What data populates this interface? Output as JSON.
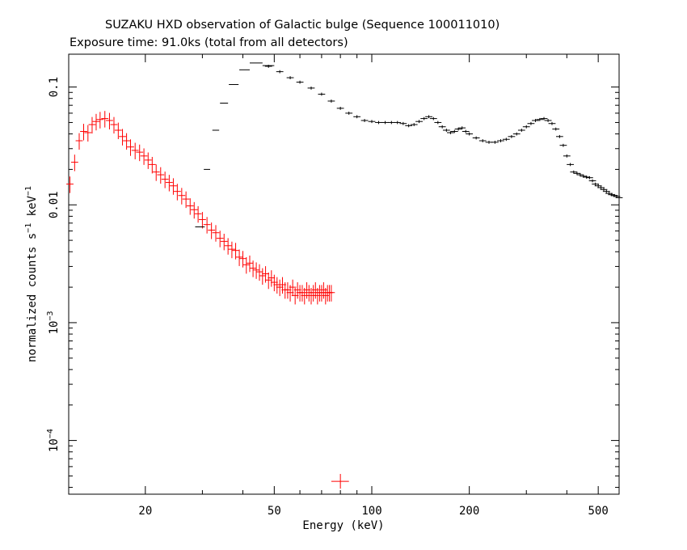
{
  "chart_data": {
    "type": "scatter",
    "title": "SUZAKU HXD observation of Galactic bulge (Sequence 100011010)",
    "subtitle": "Exposure time: 91.0ks (total from all detectors)",
    "xlabel": "Energy (keV)",
    "ylabel": "normalized counts s^-1 keV^-1",
    "x_scale": "log",
    "y_scale": "log",
    "xlim": [
      11.6,
      580
    ],
    "ylim": [
      3.5e-05,
      0.19
    ],
    "x_ticks": [
      20,
      50,
      100,
      200,
      500
    ],
    "x_tick_labels": [
      "20",
      "50",
      "100",
      "200",
      "500"
    ],
    "y_ticks": [
      0.0001,
      0.001,
      0.01,
      0.1
    ],
    "y_tick_labels": [
      {
        "base": "10",
        "exp": "−4"
      },
      {
        "base": "10",
        "exp": "−3"
      },
      {
        "base": "",
        "exp": "",
        "plain": "0.01"
      },
      {
        "base": "",
        "exp": "",
        "plain": "0.1"
      }
    ],
    "grid": false,
    "colors": {
      "pin": "#ff0000",
      "gso": "#000000"
    },
    "series": [
      {
        "key": "red",
        "color": "#ff0000",
        "x": [
          11.7,
          12.1,
          12.5,
          12.9,
          13.3,
          13.7,
          14.1,
          14.5,
          15.0,
          15.5,
          16.0,
          16.5,
          17.0,
          17.5,
          18.0,
          18.6,
          19.2,
          19.8,
          20.4,
          21.0,
          21.6,
          22.3,
          23.0,
          23.7,
          24.4,
          25.1,
          25.9,
          26.7,
          27.5,
          28.3,
          29.1,
          30.0,
          31.0,
          32.0,
          33.0,
          34.0,
          35.0,
          36.0,
          37.0,
          38.0,
          39.0,
          40.0,
          41.0,
          42.0,
          43.0,
          44.0,
          45.0,
          46.0,
          47.0,
          48.0,
          49.0,
          50.0,
          51.0,
          52.0,
          53.0,
          54.0,
          55.0,
          56.0,
          57.0,
          58.0,
          59.0,
          60.0,
          61.0,
          62.0,
          63.0,
          64.0,
          65.0,
          66.0,
          67.0,
          68.0,
          69.0,
          70.0,
          71.0,
          72.0,
          73.0,
          74.0,
          75.0
        ],
        "y": [
          0.015,
          0.023,
          0.035,
          0.042,
          0.041,
          0.048,
          0.051,
          0.053,
          0.054,
          0.052,
          0.048,
          0.043,
          0.038,
          0.035,
          0.031,
          0.029,
          0.028,
          0.026,
          0.024,
          0.022,
          0.019,
          0.018,
          0.0165,
          0.0155,
          0.0145,
          0.013,
          0.012,
          0.0112,
          0.0098,
          0.0091,
          0.0084,
          0.0075,
          0.0068,
          0.0061,
          0.0058,
          0.0052,
          0.0049,
          0.0045,
          0.0042,
          0.0041,
          0.0036,
          0.0035,
          0.0031,
          0.0032,
          0.0029,
          0.0028,
          0.0027,
          0.0025,
          0.0026,
          0.0023,
          0.0024,
          0.0022,
          0.0021,
          0.002,
          0.0021,
          0.0019,
          0.0019,
          0.0018,
          0.002,
          0.0017,
          0.0019,
          0.0018,
          0.0018,
          0.0017,
          0.0019,
          0.0018,
          0.0017,
          0.0018,
          0.0019,
          0.0017,
          0.0018,
          0.0018,
          0.0019,
          0.0017,
          0.0018,
          0.0018,
          0.0018
        ],
        "yerr_frac": 0.16
      },
      {
        "key": "red-outlier",
        "color": "#ff0000",
        "x": [
          80
        ],
        "y": [
          4.5e-05
        ],
        "xerr": [
          [
            75,
            85
          ]
        ],
        "yerr_abs": [
          [
            3.9e-05,
            5.2e-05
          ]
        ]
      },
      {
        "key": "black-bins",
        "color": "#000000",
        "x": [
          29.5,
          31.0,
          33.0,
          35.0,
          37.5,
          40.5,
          44.0,
          48.0
        ],
        "xerr": [
          [
            28.5,
            30.5
          ],
          [
            30.3,
            31.7
          ],
          [
            32.2,
            33.8
          ],
          [
            34.0,
            36.0
          ],
          [
            36.2,
            38.8
          ],
          [
            39.0,
            42.0
          ],
          [
            42.0,
            46.0
          ],
          [
            46.0,
            50.0
          ]
        ],
        "y": [
          0.0065,
          0.02,
          0.043,
          0.073,
          0.105,
          0.14,
          0.16,
          0.152
        ]
      },
      {
        "key": "black",
        "color": "#000000",
        "x": [
          48,
          52,
          56,
          60,
          65,
          70,
          75,
          80,
          85,
          90,
          95,
          100,
          105,
          110,
          115,
          120,
          125,
          130,
          135,
          140,
          145,
          150,
          155,
          160,
          165,
          170,
          175,
          180,
          185,
          190,
          195,
          200,
          210,
          220,
          230,
          240,
          250,
          260,
          270,
          280,
          290,
          300,
          310,
          320,
          330,
          340,
          350,
          360,
          370,
          380,
          390,
          400,
          410,
          420,
          430,
          440,
          450,
          460,
          470,
          480,
          490,
          500,
          510,
          520,
          530,
          540,
          550,
          560,
          570,
          580
        ],
        "y": [
          0.15,
          0.135,
          0.12,
          0.11,
          0.098,
          0.087,
          0.076,
          0.066,
          0.06,
          0.056,
          0.052,
          0.051,
          0.05,
          0.05,
          0.05,
          0.05,
          0.049,
          0.047,
          0.048,
          0.051,
          0.054,
          0.056,
          0.054,
          0.05,
          0.046,
          0.043,
          0.041,
          0.042,
          0.044,
          0.045,
          0.042,
          0.04,
          0.037,
          0.035,
          0.034,
          0.034,
          0.035,
          0.036,
          0.038,
          0.04,
          0.043,
          0.046,
          0.049,
          0.052,
          0.053,
          0.054,
          0.052,
          0.049,
          0.044,
          0.038,
          0.032,
          0.026,
          0.022,
          0.019,
          0.0185,
          0.018,
          0.0175,
          0.0172,
          0.017,
          0.016,
          0.015,
          0.0145,
          0.014,
          0.0135,
          0.013,
          0.0125,
          0.0122,
          0.012,
          0.0118,
          0.0115
        ],
        "yerr_frac": 0.03
      }
    ]
  }
}
